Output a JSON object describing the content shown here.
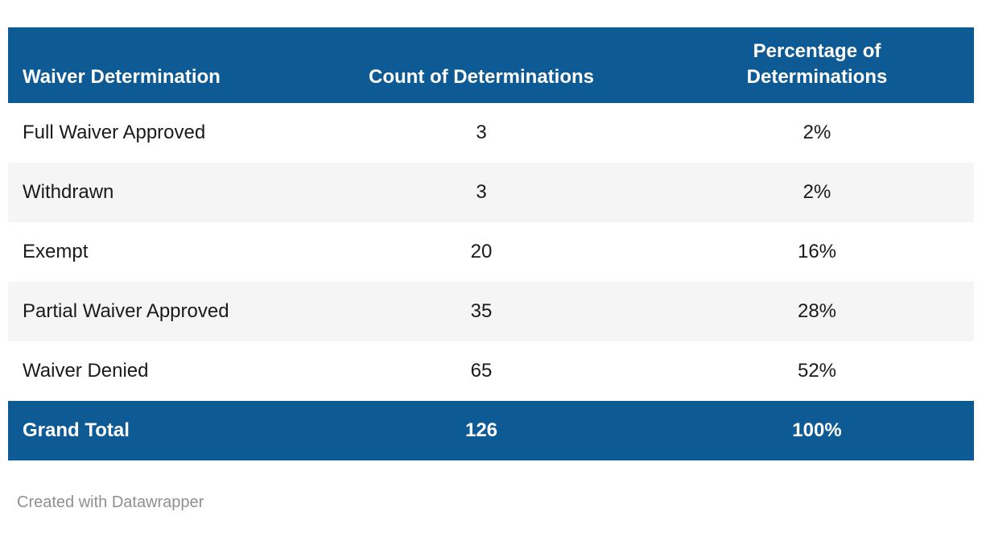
{
  "chart_data": {
    "type": "table",
    "columns": [
      "Waiver Determination",
      "Count of Determinations",
      "Percentage of Determinations"
    ],
    "rows": [
      [
        "Full Waiver Approved",
        "3",
        "2%"
      ],
      [
        "Withdrawn",
        "3",
        "2%"
      ],
      [
        "Exempt",
        "20",
        "16%"
      ],
      [
        "Partial Waiver Approved",
        "35",
        "28%"
      ],
      [
        "Waiver Denied",
        "65",
        "52%"
      ]
    ],
    "total_row": [
      "Grand Total",
      "126",
      "100%"
    ],
    "layout_hints": {
      "first_column_align": "left",
      "value_columns_align": "center",
      "zebra_striping": "rows 2 and 4 shaded",
      "total_row_style": "header-colored bold row"
    }
  },
  "footer": {
    "credit": "Created with Datawrapper"
  },
  "colors": {
    "header_bg": "#0e5a94",
    "header_text": "#ffffff",
    "zebra_row": "#f5f5f5",
    "body_text": "#1a1a1a",
    "credit_text": "#8f8f8f"
  }
}
